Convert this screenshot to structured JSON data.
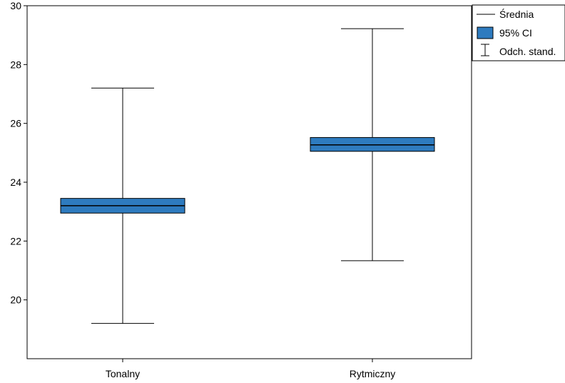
{
  "chart_data": {
    "type": "box",
    "categories": [
      "Tonalny",
      "Rytmiczny"
    ],
    "series": [
      {
        "category": "Tonalny",
        "mean": 23.2,
        "ci_low": 22.95,
        "ci_high": 23.45,
        "sd_low": 19.2,
        "sd_high": 27.2
      },
      {
        "category": "Rytmiczny",
        "mean": 25.27,
        "ci_low": 25.05,
        "ci_high": 25.52,
        "sd_low": 21.33,
        "sd_high": 29.22
      }
    ],
    "ylim": [
      18,
      30
    ],
    "yticks": [
      20,
      22,
      24,
      26,
      28,
      30
    ],
    "grid": false,
    "legend": {
      "position": "top-right",
      "entries": [
        "Średnia",
        "95% CI",
        "Odch. stand."
      ]
    },
    "colors": {
      "box_fill": "#2e7bbf",
      "line": "#000000"
    }
  }
}
